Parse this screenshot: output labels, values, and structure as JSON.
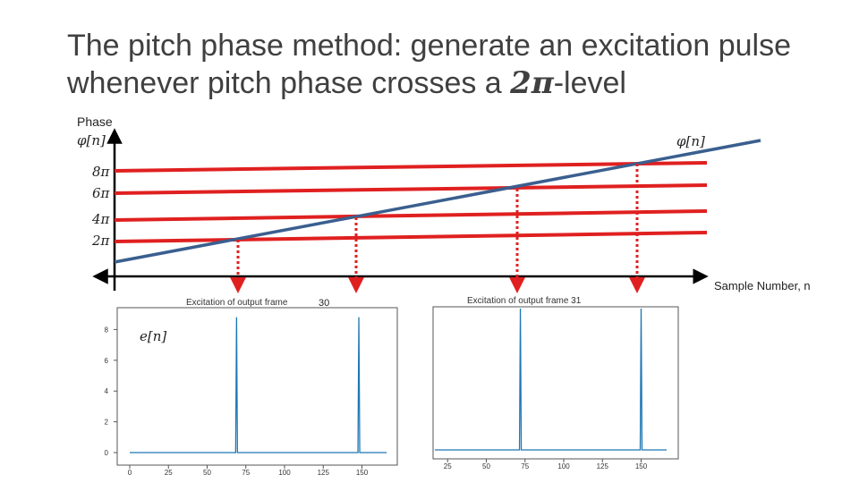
{
  "slide": {
    "title_prefix": "The pitch phase method: generate an excitation pulse whenever pitch phase crosses a ",
    "title_math": "2π",
    "title_suffix": "-level"
  },
  "diagram": {
    "phase_axis_label": "Phase",
    "phase_axis_symbol": "φ[n]",
    "phase_line_label": "φ[n]",
    "x_axis_label": "Sample Number, n",
    "levels": [
      "8π",
      "6π",
      "4π",
      "2π"
    ],
    "colors": {
      "level_lines": "#e02020",
      "phase_line": "#3a5f8f",
      "arrows": "#e02020",
      "axes": "#000000",
      "stem": "#1f77b4"
    }
  },
  "plot_left": {
    "title": "Excitation of output frame",
    "frame_number": "30",
    "signal_label": "e[n]",
    "y_ticks": [
      "0",
      "2",
      "4",
      "6",
      "8"
    ],
    "x_ticks": [
      "0",
      "25",
      "50",
      "75",
      "100",
      "125",
      "150"
    ],
    "pulses": [
      69,
      148
    ],
    "pulse_height": 8.8
  },
  "plot_right": {
    "title": "Excitation of output frame 31",
    "x_ticks": [
      "25",
      "50",
      "75",
      "100",
      "125",
      "150"
    ],
    "pulses": [
      72,
      150
    ],
    "pulse_height": 8.8
  }
}
